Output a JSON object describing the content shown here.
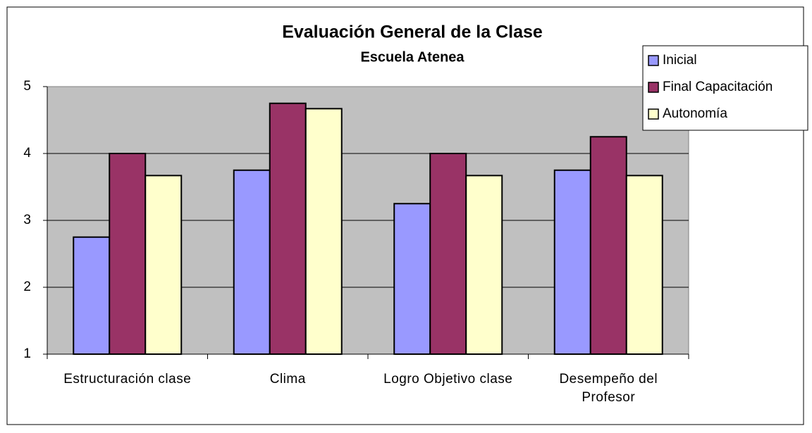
{
  "chart_data": {
    "type": "bar",
    "title": "Evaluación General de la Clase",
    "subtitle": "Escuela Atenea",
    "categories": [
      "Estructuración clase",
      "Clima",
      "Logro Objetivo clase",
      "Desempeño del Profesor"
    ],
    "series": [
      {
        "name": "Inicial",
        "color": "#9999ff",
        "values": [
          2.75,
          3.75,
          3.25,
          3.75
        ]
      },
      {
        "name": "Final Capacitación",
        "color": "#993366",
        "values": [
          4.0,
          4.75,
          4.0,
          4.25
        ]
      },
      {
        "name": "Autonomía",
        "color": "#ffffcc",
        "values": [
          3.67,
          4.67,
          3.67,
          3.67
        ]
      }
    ],
    "ylim": [
      1,
      5
    ],
    "yticks": [
      1,
      2,
      3,
      4,
      5
    ],
    "grid": true,
    "legend": "right"
  }
}
